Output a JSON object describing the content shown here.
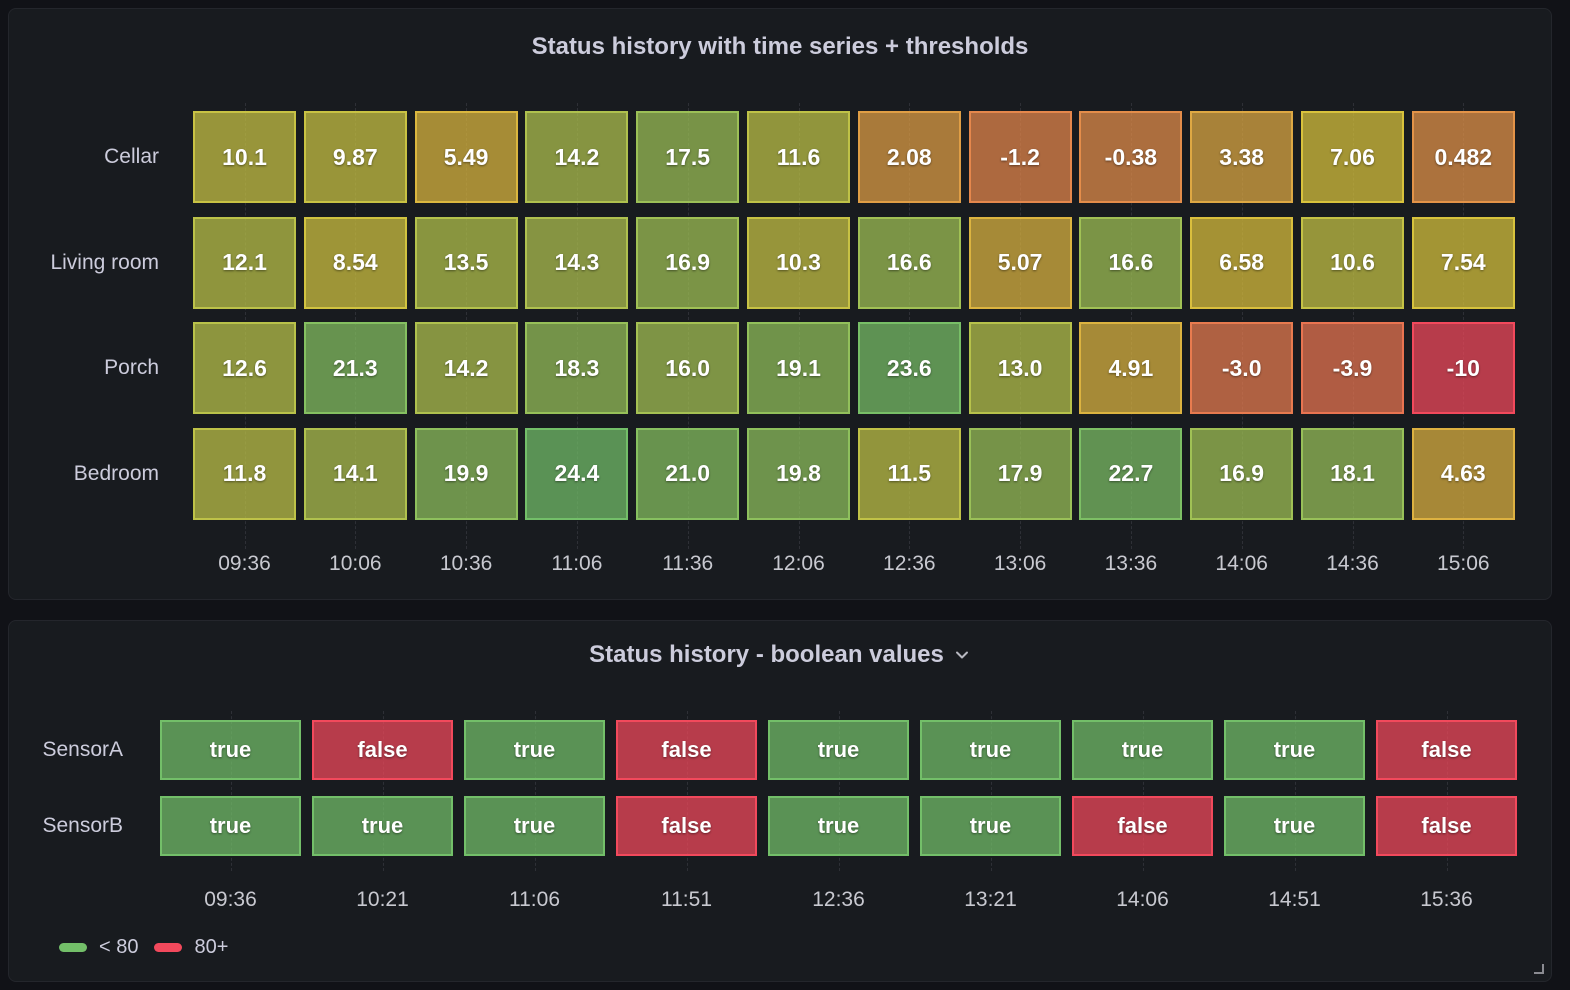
{
  "theme": {
    "page_bg": "#111217",
    "panel_bg": "#181b1f",
    "panel_border": "#24262c",
    "text_color": "#ccccdc",
    "value_text_color": "#ffffff",
    "grid_line": "rgba(204,204,220,0.12)",
    "green": "#73bf69",
    "red": "#f2495c"
  },
  "panel1": {
    "title": "Status history with time series + thresholds",
    "x_labels": [
      "09:36",
      "10:06",
      "10:36",
      "11:06",
      "11:36",
      "12:06",
      "12:36",
      "13:06",
      "13:36",
      "14:06",
      "14:36",
      "15:06"
    ],
    "rows": [
      {
        "label": "Cellar",
        "cells": [
          {
            "text": "10.1",
            "color": "#c8c244"
          },
          {
            "text": "9.87",
            "color": "#c9c243"
          },
          {
            "text": "5.49",
            "color": "#dbb73f"
          },
          {
            "text": "14.2",
            "color": "#afc14e"
          },
          {
            "text": "17.5",
            "color": "#9cc057"
          },
          {
            "text": "11.6",
            "color": "#bfc247"
          },
          {
            "text": "2.08",
            "color": "#e09e45"
          },
          {
            "text": "-1.2",
            "color": "#e5874c"
          },
          {
            "text": "-0.38",
            "color": "#e48d4a"
          },
          {
            "text": "3.38",
            "color": "#dea843"
          },
          {
            "text": "7.06",
            "color": "#d9c23c"
          },
          {
            "text": "0.482",
            "color": "#e39348"
          }
        ]
      },
      {
        "label": "Living room",
        "cells": [
          {
            "text": "12.1",
            "color": "#bcc249"
          },
          {
            "text": "8.54",
            "color": "#d1c340"
          },
          {
            "text": "13.5",
            "color": "#b4c24c"
          },
          {
            "text": "14.3",
            "color": "#afc14f"
          },
          {
            "text": "16.9",
            "color": "#a0c155"
          },
          {
            "text": "10.3",
            "color": "#c7c244"
          },
          {
            "text": "16.6",
            "color": "#a1c155"
          },
          {
            "text": "5.07",
            "color": "#dcb440"
          },
          {
            "text": "16.6",
            "color": "#a1c155"
          },
          {
            "text": "6.58",
            "color": "#dabf3d"
          },
          {
            "text": "10.6",
            "color": "#c5c245"
          },
          {
            "text": "7.54",
            "color": "#d7c33d"
          }
        ]
      },
      {
        "label": "Porch",
        "cells": [
          {
            "text": "12.6",
            "color": "#b9c24a"
          },
          {
            "text": "21.3",
            "color": "#85c061"
          },
          {
            "text": "14.2",
            "color": "#afc14e"
          },
          {
            "text": "18.3",
            "color": "#97c059"
          },
          {
            "text": "16.0",
            "color": "#a5c153"
          },
          {
            "text": "19.1",
            "color": "#92c05b"
          },
          {
            "text": "23.6",
            "color": "#78bf67"
          },
          {
            "text": "13.0",
            "color": "#b7c24b"
          },
          {
            "text": "4.91",
            "color": "#dcb340"
          },
          {
            "text": "-3.0",
            "color": "#e87b4f"
          },
          {
            "text": "-3.9",
            "color": "#e97451"
          },
          {
            "text": "-10",
            "color": "#f2495c"
          }
        ]
      },
      {
        "label": "Bedroom",
        "cells": [
          {
            "text": "11.8",
            "color": "#bec248"
          },
          {
            "text": "14.1",
            "color": "#b0c14e"
          },
          {
            "text": "19.9",
            "color": "#8ec05d"
          },
          {
            "text": "24.4",
            "color": "#73bf69"
          },
          {
            "text": "21.0",
            "color": "#87c060"
          },
          {
            "text": "19.8",
            "color": "#8ec05d"
          },
          {
            "text": "11.5",
            "color": "#c0c247"
          },
          {
            "text": "17.9",
            "color": "#9ac058"
          },
          {
            "text": "22.7",
            "color": "#7dbf65"
          },
          {
            "text": "16.9",
            "color": "#a0c155"
          },
          {
            "text": "18.1",
            "color": "#98c059"
          },
          {
            "text": "4.63",
            "color": "#ddb141"
          }
        ]
      }
    ]
  },
  "panel2": {
    "title": "Status history - boolean values",
    "chevron_icon": "chevron-down",
    "x_labels": [
      "09:36",
      "10:21",
      "11:06",
      "11:51",
      "12:36",
      "13:21",
      "14:06",
      "14:51",
      "15:36"
    ],
    "rows": [
      {
        "label": "SensorA",
        "cells": [
          {
            "text": "true",
            "color": "#73bf69"
          },
          {
            "text": "false",
            "color": "#f2495c"
          },
          {
            "text": "true",
            "color": "#73bf69"
          },
          {
            "text": "false",
            "color": "#f2495c"
          },
          {
            "text": "true",
            "color": "#73bf69"
          },
          {
            "text": "true",
            "color": "#73bf69"
          },
          {
            "text": "true",
            "color": "#73bf69"
          },
          {
            "text": "true",
            "color": "#73bf69"
          },
          {
            "text": "false",
            "color": "#f2495c"
          }
        ]
      },
      {
        "label": "SensorB",
        "cells": [
          {
            "text": "true",
            "color": "#73bf69"
          },
          {
            "text": "true",
            "color": "#73bf69"
          },
          {
            "text": "true",
            "color": "#73bf69"
          },
          {
            "text": "false",
            "color": "#f2495c"
          },
          {
            "text": "true",
            "color": "#73bf69"
          },
          {
            "text": "true",
            "color": "#73bf69"
          },
          {
            "text": "false",
            "color": "#f2495c"
          },
          {
            "text": "true",
            "color": "#73bf69"
          },
          {
            "text": "false",
            "color": "#f2495c"
          }
        ]
      }
    ],
    "legend": [
      {
        "label": "< 80",
        "color": "#73bf69"
      },
      {
        "label": "80+",
        "color": "#f2495c"
      }
    ]
  },
  "chart_data": [
    {
      "type": "status-history",
      "title": "Status history with time series + thresholds",
      "x": [
        "09:36",
        "10:06",
        "10:36",
        "11:06",
        "11:36",
        "12:06",
        "12:36",
        "13:06",
        "13:36",
        "14:06",
        "14:36",
        "15:06"
      ],
      "series": [
        {
          "name": "Cellar",
          "values": [
            10.1,
            9.87,
            5.49,
            14.2,
            17.5,
            11.6,
            2.08,
            -1.2,
            -0.38,
            3.38,
            7.06,
            0.482
          ]
        },
        {
          "name": "Living room",
          "values": [
            12.1,
            8.54,
            13.5,
            14.3,
            16.9,
            10.3,
            16.6,
            5.07,
            16.6,
            6.58,
            10.6,
            7.54
          ]
        },
        {
          "name": "Porch",
          "values": [
            12.6,
            21.3,
            14.2,
            18.3,
            16.0,
            19.1,
            23.6,
            13.0,
            4.91,
            -3.0,
            -3.9,
            -10
          ]
        },
        {
          "name": "Bedroom",
          "values": [
            11.8,
            14.1,
            19.9,
            24.4,
            21.0,
            19.8,
            11.5,
            17.9,
            22.7,
            16.9,
            18.1,
            4.63
          ]
        }
      ],
      "color_scale": {
        "type": "continuous-red-yellow-green",
        "stops": [
          "#f2495c",
          "#d9c33c",
          "#73bf69"
        ],
        "min": -10,
        "max": 24.4
      },
      "grid": "vertical-dashed",
      "legend_position": "none"
    },
    {
      "type": "status-history",
      "title": "Status history - boolean values",
      "x": [
        "09:36",
        "10:21",
        "11:06",
        "11:51",
        "12:36",
        "13:21",
        "14:06",
        "14:51",
        "15:36"
      ],
      "series": [
        {
          "name": "SensorA",
          "values": [
            "true",
            "false",
            "true",
            "false",
            "true",
            "true",
            "true",
            "true",
            "false"
          ]
        },
        {
          "name": "SensorB",
          "values": [
            "true",
            "true",
            "true",
            "false",
            "true",
            "true",
            "false",
            "true",
            "false"
          ]
        }
      ],
      "value_colors": {
        "true": "#73bf69",
        "false": "#f2495c"
      },
      "grid": "vertical-dashed",
      "legend_position": "bottom-left",
      "legend": [
        {
          "label": "< 80",
          "color": "#73bf69"
        },
        {
          "label": "80+",
          "color": "#f2495c"
        }
      ]
    }
  ]
}
